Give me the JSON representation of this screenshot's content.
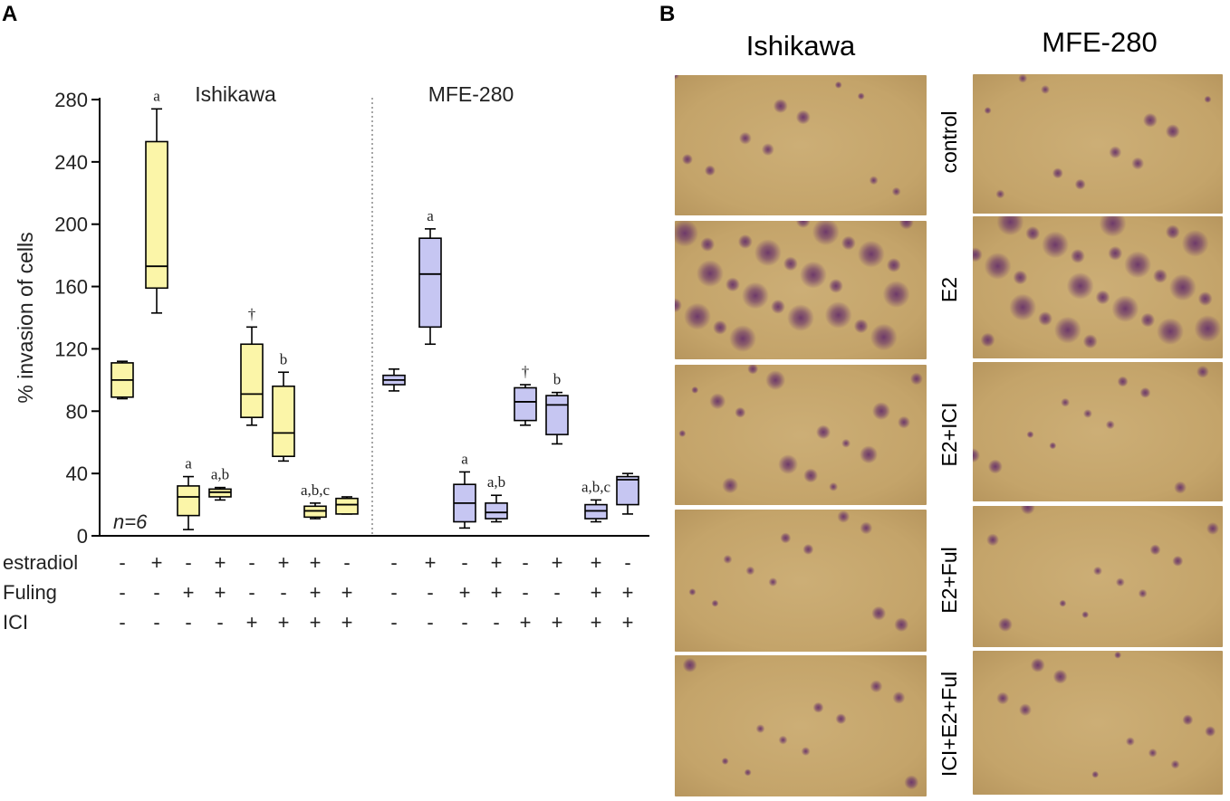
{
  "panel_labels": {
    "a": "A",
    "b": "B"
  },
  "chart_data": {
    "type": "boxplot",
    "ylabel": "% invasion of cells",
    "ylim": [
      0,
      280
    ],
    "yticks": [
      0,
      40,
      80,
      120,
      160,
      200,
      240,
      280
    ],
    "annotation": "n=6",
    "row_labels": [
      "estradiol",
      "Fuling",
      "ICI"
    ],
    "colors": {
      "Ishikawa": "#fbf5a8",
      "MFE-280": "#c6c6f2",
      "box_stroke": "#000000"
    },
    "groups": [
      {
        "name": "Ishikawa",
        "boxes": [
          {
            "estradiol": "-",
            "Fuling": "-",
            "ICI": "-",
            "min": 88,
            "q1": 89,
            "median": 100,
            "q3": 111,
            "max": 112,
            "label": ""
          },
          {
            "estradiol": "+",
            "Fuling": "-",
            "ICI": "-",
            "min": 143,
            "q1": 159,
            "median": 173,
            "q3": 253,
            "max": 274,
            "label": "a"
          },
          {
            "estradiol": "-",
            "Fuling": "+",
            "ICI": "-",
            "min": 4,
            "q1": 13,
            "median": 25,
            "q3": 32,
            "max": 38,
            "label": "a"
          },
          {
            "estradiol": "+",
            "Fuling": "+",
            "ICI": "-",
            "min": 23,
            "q1": 25,
            "median": 28,
            "q3": 30,
            "max": 31,
            "label": "a,b"
          },
          {
            "estradiol": "-",
            "Fuling": "-",
            "ICI": "+",
            "min": 71,
            "q1": 76,
            "median": 91,
            "q3": 123,
            "max": 134,
            "label": "†"
          },
          {
            "estradiol": "+",
            "Fuling": "-",
            "ICI": "+",
            "min": 48,
            "q1": 51,
            "median": 66,
            "q3": 96,
            "max": 105,
            "label": "b"
          },
          {
            "estradiol": "+",
            "Fuling": "+",
            "ICI": "+",
            "min": 11,
            "q1": 12,
            "median": 16,
            "q3": 19,
            "max": 21,
            "label": "a,b,c"
          },
          {
            "estradiol": "-",
            "Fuling": "+",
            "ICI": "+",
            "min": 14,
            "q1": 14,
            "median": 20,
            "q3": 24,
            "max": 25,
            "label": ""
          }
        ]
      },
      {
        "name": "MFE-280",
        "boxes": [
          {
            "estradiol": "-",
            "Fuling": "-",
            "ICI": "-",
            "min": 93,
            "q1": 97,
            "median": 100,
            "q3": 103,
            "max": 107,
            "label": ""
          },
          {
            "estradiol": "+",
            "Fuling": "-",
            "ICI": "-",
            "min": 123,
            "q1": 134,
            "median": 168,
            "q3": 191,
            "max": 197,
            "label": "a"
          },
          {
            "estradiol": "-",
            "Fuling": "+",
            "ICI": "-",
            "min": 5,
            "q1": 9,
            "median": 21,
            "q3": 33,
            "max": 41,
            "label": "a"
          },
          {
            "estradiol": "+",
            "Fuling": "+",
            "ICI": "-",
            "min": 9,
            "q1": 11,
            "median": 15,
            "q3": 21,
            "max": 26,
            "label": "a,b"
          },
          {
            "estradiol": "-",
            "Fuling": "-",
            "ICI": "+",
            "min": 71,
            "q1": 74,
            "median": 86,
            "q3": 95,
            "max": 97,
            "label": "†"
          },
          {
            "estradiol": "+",
            "Fuling": "-",
            "ICI": "+",
            "min": 59,
            "q1": 65,
            "median": 84,
            "q3": 90,
            "max": 92,
            "label": "b"
          },
          {
            "estradiol": "+",
            "Fuling": "+",
            "ICI": "+",
            "min": 9,
            "q1": 11,
            "median": 16,
            "q3": 20,
            "max": 23,
            "label": "a,b,c"
          },
          {
            "estradiol": "-",
            "Fuling": "+",
            "ICI": "+",
            "min": 14,
            "q1": 20,
            "median": 36,
            "q3": 38,
            "max": 40,
            "label": ""
          }
        ]
      }
    ]
  },
  "micrographs": {
    "columns": [
      "Ishikawa",
      "MFE-280"
    ],
    "rows": [
      "control",
      "E2",
      "E2+ICI",
      "E2+Ful",
      "ICI+E2+Ful"
    ],
    "background_color": "#c4a46a",
    "stain_color": "#6e3a6a",
    "stain_density": [
      [
        1,
        1
      ],
      [
        4,
        4
      ],
      [
        2,
        1
      ],
      [
        1,
        1
      ],
      [
        1,
        1
      ]
    ]
  }
}
